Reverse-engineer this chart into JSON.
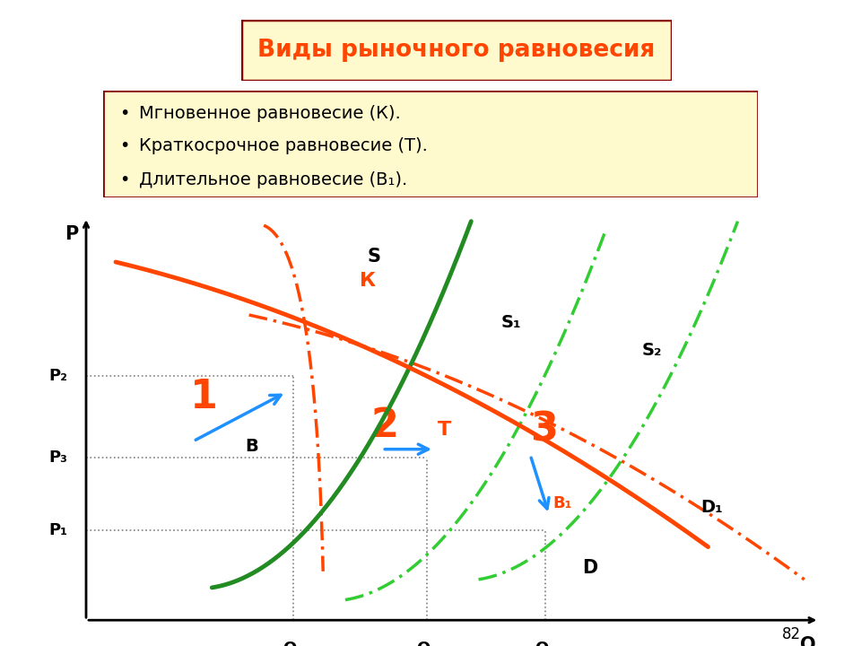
{
  "title": "Виды рыночного равновесия",
  "title_color": "#FF4500",
  "title_bg": "#FFFACD",
  "title_border": "#8B0000",
  "bullet_items": [
    "Мгновенное равновесие (К).",
    "Краткосрочное равновесие (Т).",
    "Длительное равновесие (В₁)."
  ],
  "bullet_bg": "#FFFACD",
  "bullet_border": "#8B0000",
  "page_num": "82",
  "colors": {
    "demand_D": "#FF4500",
    "demand_D1": "#FF4500",
    "supply_S": "#228B22",
    "supply_S1": "#32CD32",
    "supply_S2": "#32CD32",
    "supply_K": "#FF4500",
    "ref_lines": "#808080",
    "arrow": "#1E90FF",
    "label_orange": "#FF4500",
    "label_black": "#000000"
  },
  "q1": 0.28,
  "q2": 0.46,
  "q3": 0.62,
  "p1": 0.22,
  "p2": 0.6,
  "p3": 0.4
}
